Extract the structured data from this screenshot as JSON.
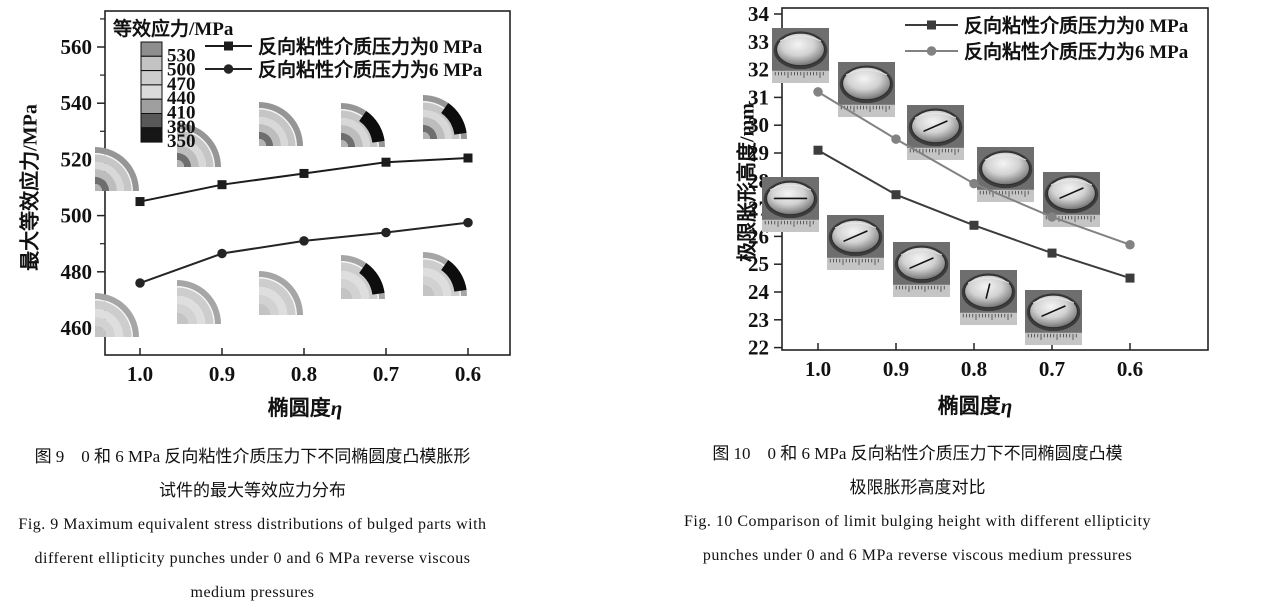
{
  "page": {
    "background": "#ffffff"
  },
  "chart_data": [
    {
      "id": "fig9",
      "type": "line",
      "title": "",
      "categories": [
        "1.0",
        "0.9",
        "0.8",
        "0.7",
        "0.6"
      ],
      "xlabel": "椭圆度",
      "xlabel_symbol": "η",
      "ylabel": "最大等效应力/MPa",
      "ylim": [
        450,
        572
      ],
      "yticks": [
        460,
        480,
        500,
        520,
        540,
        560
      ],
      "yminor_step": 10,
      "grid": false,
      "legend_position": "top-right-inside",
      "series": [
        {
          "name": "反向粘性介质压力为0 MPa",
          "marker": "square",
          "color": "#1c1c1c",
          "values": [
            505,
            511,
            515,
            519,
            520.5
          ]
        },
        {
          "name": "反向粘性介质压力为6 MPa",
          "marker": "circle",
          "color": "#242424",
          "values": [
            476,
            486.5,
            491,
            494,
            497.5
          ]
        }
      ],
      "colorbar": {
        "title": "等效应力/MPa",
        "labels": [
          "530",
          "500",
          "470",
          "440",
          "410",
          "380",
          "350"
        ],
        "colors": [
          "#8e8e8e",
          "#c3c3c3",
          "#cdcdcd",
          "#dadada",
          "#9f9f9f",
          "#585858",
          "#161616"
        ]
      },
      "insets": [
        {
          "eta": "1.0",
          "row": "top"
        },
        {
          "eta": "0.9",
          "row": "top"
        },
        {
          "eta": "0.8",
          "row": "top"
        },
        {
          "eta": "0.7",
          "row": "top",
          "black_zone": true
        },
        {
          "eta": "0.6",
          "row": "top",
          "black_zone": true
        },
        {
          "eta": "1.0",
          "row": "bottom"
        },
        {
          "eta": "0.9",
          "row": "bottom"
        },
        {
          "eta": "0.8",
          "row": "bottom"
        },
        {
          "eta": "0.7",
          "row": "bottom",
          "black_zone": true
        },
        {
          "eta": "0.6",
          "row": "bottom",
          "black_zone": true
        }
      ],
      "caption_cn_line1": "图 9　0 和 6 MPa 反向粘性介质压力下不同椭圆度凸模胀形",
      "caption_cn_line2": "试件的最大等效应力分布",
      "caption_en_line1": "Fig. 9   Maximum equivalent stress distributions of bulged parts with",
      "caption_en_line2": "different ellipticity punches under 0 and 6 MPa reverse viscous",
      "caption_en_line3": "medium pressures"
    },
    {
      "id": "fig10",
      "type": "line",
      "title": "",
      "categories": [
        "1.0",
        "0.9",
        "0.8",
        "0.7",
        "0.6"
      ],
      "xlabel": "椭圆度",
      "xlabel_symbol": "η",
      "ylabel": "极限胀形高度/mm",
      "ylim": [
        22,
        34
      ],
      "yticks": [
        22,
        23,
        24,
        25,
        26,
        27,
        28,
        29,
        30,
        31,
        32,
        33,
        34
      ],
      "grid": false,
      "legend_position": "top-right-inside",
      "series": [
        {
          "name": "反向粘性介质压力为0 MPa",
          "marker": "square",
          "color": "#3c3c3c",
          "values": [
            29.1,
            27.5,
            26.4,
            25.4,
            24.5
          ]
        },
        {
          "name": "反向粘性介质压力为6 MPa",
          "marker": "circle",
          "color": "#828282",
          "values": [
            31.2,
            29.5,
            27.9,
            26.7,
            25.7
          ]
        }
      ],
      "insets": [
        {
          "eta": "1.0",
          "row": "top",
          "crack": false
        },
        {
          "eta": "0.9",
          "row": "top",
          "crack": false
        },
        {
          "eta": "0.8",
          "row": "top",
          "crack": true
        },
        {
          "eta": "0.7",
          "row": "top",
          "crack": false
        },
        {
          "eta": "0.6",
          "row": "top",
          "crack": true
        },
        {
          "eta": "1.0",
          "row": "bottom",
          "crack": true
        },
        {
          "eta": "0.9",
          "row": "bottom",
          "crack": true
        },
        {
          "eta": "0.8",
          "row": "bottom",
          "crack": true
        },
        {
          "eta": "0.7",
          "row": "bottom",
          "crack": true
        },
        {
          "eta": "0.6",
          "row": "bottom",
          "crack": true
        }
      ],
      "caption_cn_line1": "图 10　0 和 6 MPa 反向粘性介质压力下不同椭圆度凸模",
      "caption_cn_line2": "极限胀形高度对比",
      "caption_en_line1": "Fig. 10   Comparison of limit bulging height with different ellipticity",
      "caption_en_line2": "punches under 0 and 6 MPa reverse viscous medium pressures"
    }
  ]
}
